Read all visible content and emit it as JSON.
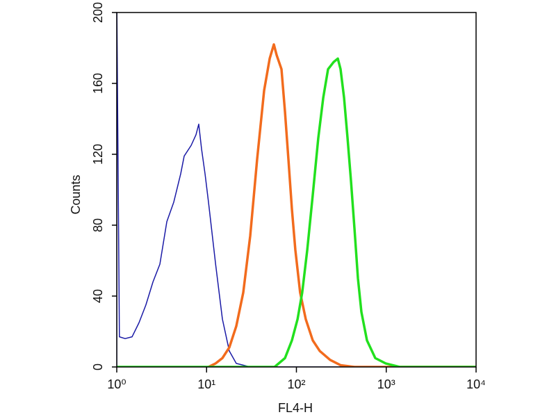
{
  "chart_data": {
    "type": "line",
    "x_label": "FL4-H",
    "y_label": "Counts",
    "log_x": true,
    "xlim": [
      1,
      10000
    ],
    "ylim": [
      0,
      200
    ],
    "xticks": [
      {
        "value": 1,
        "label": "10⁰"
      },
      {
        "value": 10,
        "label": "10¹"
      },
      {
        "value": 100,
        "label": "10²"
      },
      {
        "value": 1000,
        "label": "10³"
      },
      {
        "value": 10000,
        "label": "10⁴"
      }
    ],
    "yticks": [
      0,
      40,
      80,
      120,
      160,
      200
    ],
    "series": [
      {
        "color": "#1a1aa6",
        "width": 1.5,
        "x": [
          1,
          1,
          1.07,
          1.24,
          1.48,
          1.77,
          2.11,
          2.53,
          3.02,
          3.61,
          4.31,
          5.15,
          5.63,
          6.73,
          7.62,
          8.18,
          8.79,
          9.61,
          10.5,
          12.6,
          15.0,
          17.9,
          21.4,
          30.6,
          62.4,
          10000
        ],
        "values": [
          0,
          210,
          17,
          16,
          17,
          25,
          35,
          48,
          58,
          82,
          93,
          109,
          119,
          125,
          131,
          137,
          123,
          109,
          93,
          58,
          27,
          9,
          2,
          0,
          0,
          0
        ]
      },
      {
        "color": "#f26b1d",
        "width": 3.5,
        "x": [
          10.5,
          12.6,
          15.0,
          17.9,
          21.4,
          25.6,
          30.6,
          36.5,
          43.7,
          50.4,
          56.1,
          60.2,
          68.2,
          74.6,
          81.5,
          89.1,
          97.3,
          110,
          127,
          152,
          182,
          237,
          310,
          443,
          10000
        ],
        "values": [
          0,
          2,
          5,
          11,
          23,
          42,
          74,
          117,
          156,
          174,
          182,
          176,
          168,
          144,
          117,
          89,
          66,
          42,
          27,
          15,
          9,
          4,
          1,
          0,
          0
        ]
      },
      {
        "color": "#22e01e",
        "width": 3.5,
        "x": [
          1,
          57.1,
          74.6,
          89.1,
          103,
          116,
          132,
          152,
          175,
          199,
          225,
          259,
          289,
          310,
          339,
          371,
          405,
          443,
          484,
          529,
          610,
          755,
          986,
          1409,
          10000
        ],
        "values": [
          0,
          0,
          5,
          15,
          27,
          42,
          66,
          97,
          129,
          152,
          168,
          172,
          174,
          168,
          152,
          129,
          105,
          78,
          50,
          31,
          15,
          5,
          2,
          0,
          0
        ]
      }
    ]
  }
}
